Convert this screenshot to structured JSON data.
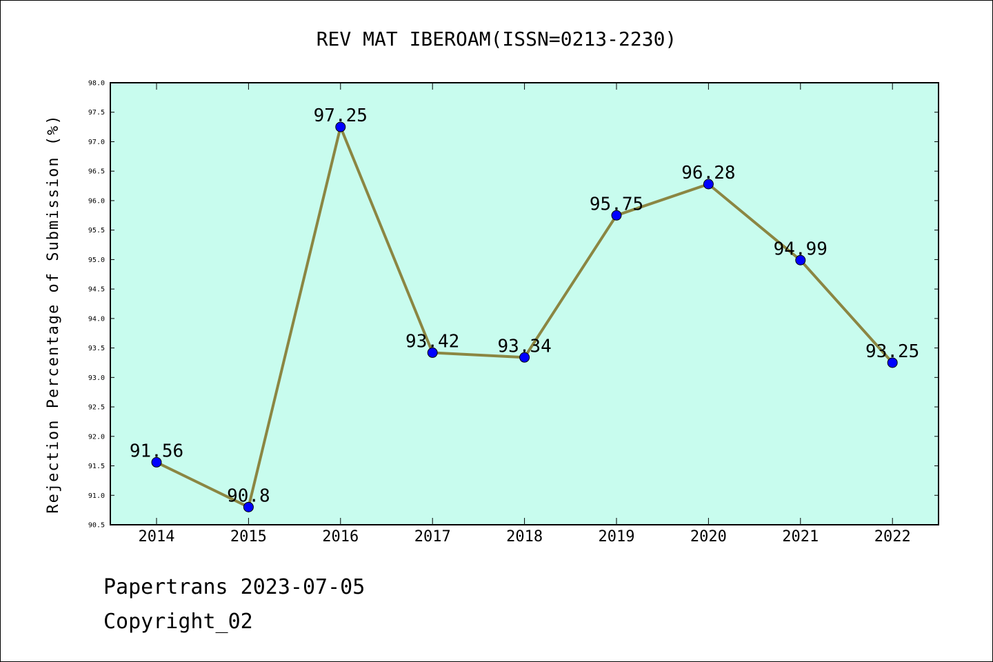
{
  "chart_data": {
    "type": "line",
    "title": "REV MAT IBEROAM(ISSN=0213-2230)",
    "xlabel": "",
    "ylabel": "Rejection Percentage of Submission (%)",
    "categories": [
      "2014",
      "2015",
      "2016",
      "2017",
      "2018",
      "2019",
      "2020",
      "2021",
      "2022"
    ],
    "series": [
      {
        "values": [
          91.56,
          90.8,
          97.25,
          93.42,
          93.34,
          95.75,
          96.28,
          94.99,
          93.25
        ],
        "labels": [
          "91.56",
          "90.8",
          "97.25",
          "93.42",
          "93.34",
          "95.75",
          "96.28",
          "94.99",
          "93.25"
        ]
      }
    ],
    "ylim": [
      90.5,
      98.0
    ],
    "yticks": [
      "90.5",
      "91.0",
      "91.5",
      "92.0",
      "92.5",
      "93.0",
      "93.5",
      "94.0",
      "94.5",
      "95.0",
      "95.5",
      "96.0",
      "96.5",
      "97.0",
      "97.5",
      "98.0"
    ],
    "grid": false,
    "colors": {
      "plot_background": "#c8fcee",
      "line": "#8b8642",
      "marker": "#0000ff"
    }
  },
  "footer": {
    "line1": "Papertrans 2023-07-05",
    "line2": "Copyright_02"
  }
}
